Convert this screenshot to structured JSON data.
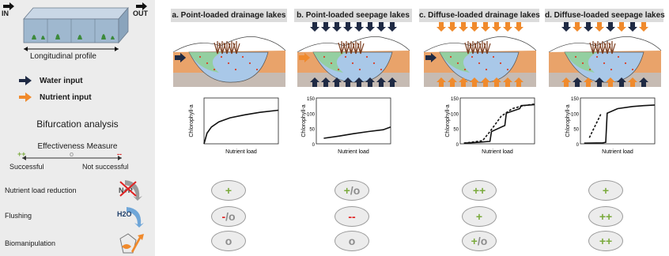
{
  "sidebar": {
    "io_in": "IN",
    "io_out": "OUT",
    "profile_label": "Longitudinal profile",
    "water_input": "Water input",
    "nutrient_input": "Nutrient input",
    "bifurcation_title": "Bifurcation analysis",
    "effectiveness_title": "Effectiveness Measure",
    "scale_plus": "++",
    "scale_mid": "o",
    "scale_minus": "--",
    "successful": "Successful",
    "not_successful": "Not successful",
    "measures": [
      "Nutrient load reduction",
      "Flushing",
      "Biomanipulation"
    ],
    "icon_texts": {
      "nutrient": "N+P",
      "flushing": "H2O"
    }
  },
  "colors": {
    "water_arrow": "#1f2a44",
    "nutrient_arrow": "#f08a2c",
    "plus": "#7aaa3c",
    "minus": "#e02020",
    "neutral": "#8c8c8c"
  },
  "columns": [
    {
      "title": "a. Point-loaded drainage lakes",
      "ratings": [
        [
          "+"
        ],
        [
          "-",
          "/o"
        ],
        [
          "o"
        ]
      ]
    },
    {
      "title": "b. Point-loaded seepage lakes",
      "ratings": [
        [
          "+",
          "/o"
        ],
        [
          "--"
        ],
        [
          "o"
        ]
      ]
    },
    {
      "title": "c. Diffuse-loaded drainage lakes",
      "ratings": [
        [
          "++"
        ],
        [
          "+"
        ],
        [
          "+",
          "/o"
        ]
      ]
    },
    {
      "title": "d. Diffuse-loaded seepage lakes",
      "ratings": [
        [
          "+"
        ],
        [
          "++"
        ],
        [
          "++"
        ]
      ]
    }
  ],
  "chart_data": [
    {
      "type": "line",
      "xlabel": "Nutrient load",
      "ylabel": "Chlorophyll-a",
      "yticks": [],
      "series": [
        {
          "x": [
            0,
            0.04,
            0.1,
            0.2,
            0.35,
            0.55,
            0.75,
            1.0
          ],
          "y": [
            0,
            35,
            55,
            72,
            85,
            95,
            103,
            110
          ]
        }
      ]
    },
    {
      "type": "line",
      "xlabel": "Nutrient load",
      "ylabel": "Chlorophyll-a",
      "ylim": [
        0,
        150
      ],
      "yticks": [
        0,
        50,
        100,
        150
      ],
      "series": [
        {
          "x": [
            0.1,
            0.3,
            0.5,
            0.7,
            0.9,
            1.0
          ],
          "y": [
            18,
            25,
            33,
            40,
            46,
            55
          ]
        }
      ]
    },
    {
      "type": "line",
      "xlabel": "Nutrient load",
      "ylabel": "Chlorophyll-a",
      "ylim": [
        0,
        150
      ],
      "yticks": [
        0,
        50,
        100,
        150
      ],
      "series": [
        {
          "style": "solid",
          "x": [
            0.05,
            0.25,
            0.4,
            0.42,
            0.6,
            0.62,
            0.8,
            0.82,
            1.0
          ],
          "y": [
            2,
            5,
            8,
            40,
            60,
            100,
            115,
            125,
            128
          ]
        },
        {
          "style": "dashed",
          "x": [
            0.05,
            0.3,
            0.4,
            0.55,
            0.7,
            0.85,
            1.0
          ],
          "y": [
            2,
            10,
            40,
            90,
            115,
            125,
            130
          ]
        }
      ]
    },
    {
      "type": "line",
      "xlabel": "Nutrient load",
      "ylabel": "Chlorophyll-a",
      "ylim": [
        0,
        150
      ],
      "yticks": [
        0,
        50,
        100,
        150
      ],
      "series": [
        {
          "style": "solid",
          "x": [
            0.05,
            0.3,
            0.34,
            0.36,
            0.5,
            0.7,
            0.85,
            1.0
          ],
          "y": [
            2,
            3,
            5,
            100,
            115,
            122,
            125,
            127
          ]
        },
        {
          "style": "dashed",
          "x": [
            0.12,
            0.16,
            0.2,
            0.24,
            0.28
          ],
          "y": [
            20,
            40,
            60,
            80,
            100
          ]
        }
      ]
    }
  ]
}
